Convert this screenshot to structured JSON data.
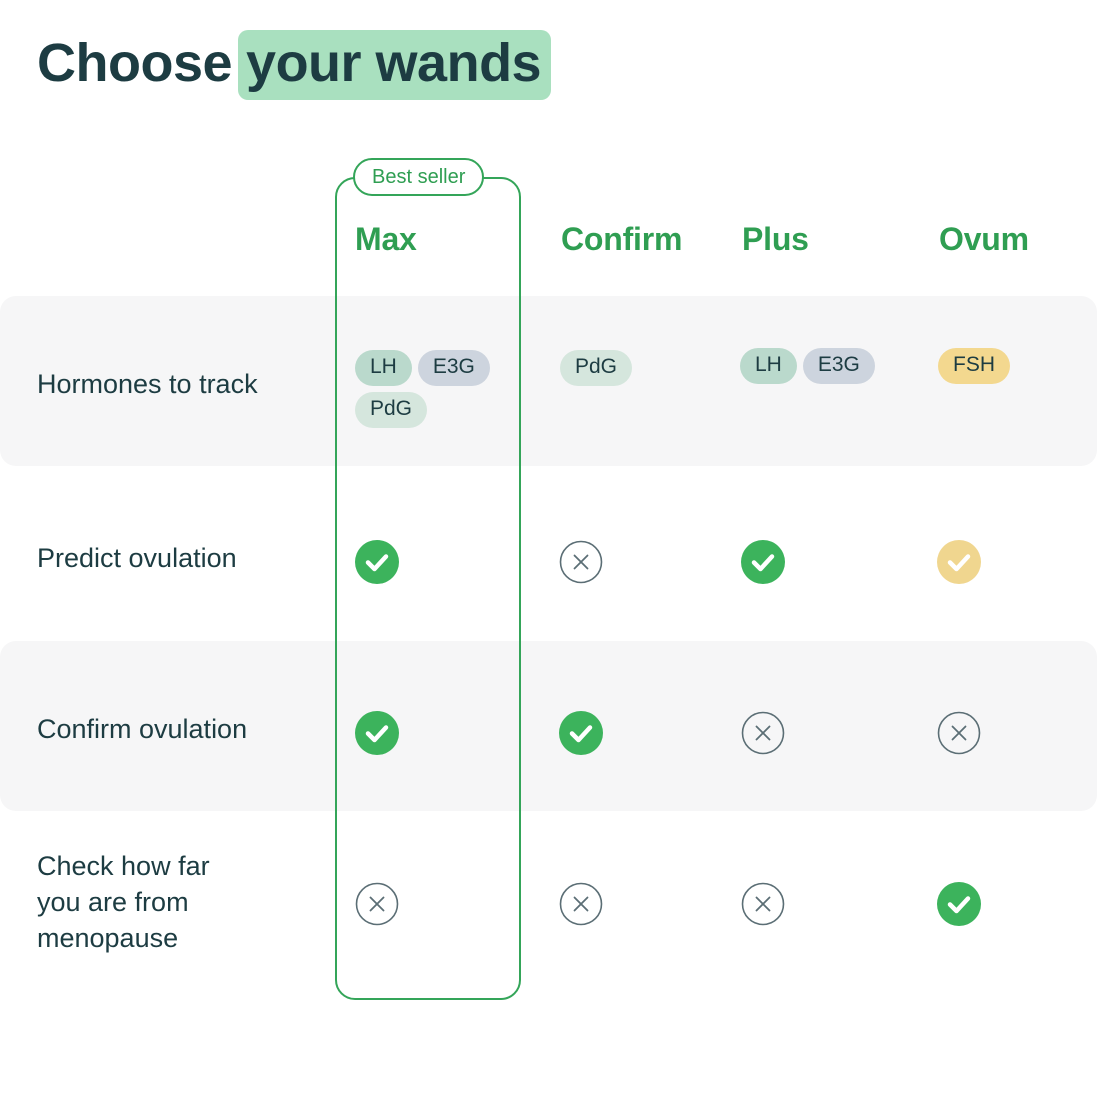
{
  "title": {
    "plain": "Choose",
    "highlighted": "your wands"
  },
  "badge": {
    "label": "Best seller"
  },
  "columns": [
    {
      "label": "Max",
      "best_seller": true
    },
    {
      "label": "Confirm",
      "best_seller": false
    },
    {
      "label": "Plus",
      "best_seller": false
    },
    {
      "label": "Ovum",
      "best_seller": false
    }
  ],
  "rows": [
    {
      "label": "Hormones to track",
      "striped": true,
      "cells": [
        {
          "type": "chips",
          "chips": [
            {
              "label": "LH",
              "color": "teal"
            },
            {
              "label": "E3G",
              "color": "lavender"
            },
            {
              "label": "PdG",
              "color": "mint"
            }
          ]
        },
        {
          "type": "chips",
          "chips": [
            {
              "label": "PdG",
              "color": "mint"
            }
          ]
        },
        {
          "type": "chips",
          "chips": [
            {
              "label": "LH",
              "color": "teal"
            },
            {
              "label": "E3G",
              "color": "lavender"
            }
          ]
        },
        {
          "type": "chips",
          "chips": [
            {
              "label": "FSH",
              "color": "gold"
            }
          ]
        }
      ]
    },
    {
      "label": "Predict ovulation",
      "striped": false,
      "cells": [
        {
          "type": "check",
          "variant": "green"
        },
        {
          "type": "cross"
        },
        {
          "type": "check",
          "variant": "green"
        },
        {
          "type": "check",
          "variant": "gold"
        }
      ]
    },
    {
      "label": "Confirm ovulation",
      "striped": true,
      "cells": [
        {
          "type": "check",
          "variant": "green"
        },
        {
          "type": "check",
          "variant": "green"
        },
        {
          "type": "cross"
        },
        {
          "type": "cross"
        }
      ]
    },
    {
      "label": "Check how far you are from menopause",
      "striped": false,
      "cells": [
        {
          "type": "cross"
        },
        {
          "type": "cross"
        },
        {
          "type": "cross"
        },
        {
          "type": "check",
          "variant": "green"
        }
      ]
    }
  ],
  "colors": {
    "accent_green": "#2f9e52",
    "box_border_green": "#34a559",
    "check_green": "#3cb35c",
    "check_gold": "#f0d68f",
    "cross_stroke": "#5b6e75",
    "highlight_green": "#a9e0bf",
    "band_gray": "#f6f6f7",
    "text_dark": "#1d3c42",
    "chip_teal": "#bad9cc",
    "chip_lavender": "#cdd4de",
    "chip_mint": "#d5e6dd",
    "chip_gold": "#f3d88f"
  }
}
